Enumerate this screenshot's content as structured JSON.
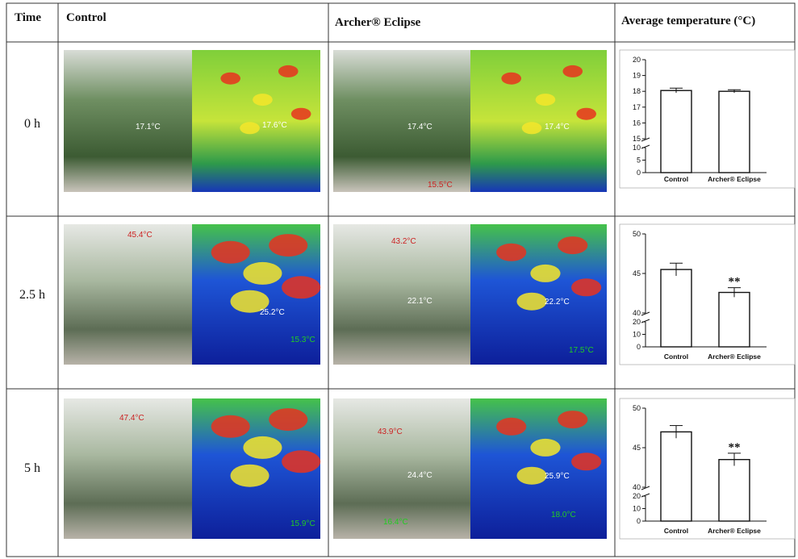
{
  "header": {
    "time": "Time",
    "control": "Control",
    "treatment": "Archer® Eclipse",
    "chart": "Average temperature (°C)"
  },
  "rows": [
    {
      "time": "0 h",
      "control": {
        "photo": [
          "17.1°C"
        ],
        "thermal": [
          "17.6°C"
        ]
      },
      "treatment": {
        "photo": [
          "17.4°C",
          "15.5°C"
        ],
        "thermal": [
          "17.4°C"
        ]
      },
      "chart": {
        "type": "bar",
        "categories": [
          "Control",
          "Archer® Eclipse"
        ],
        "values": [
          18.05,
          18.0
        ],
        "errors": [
          0.15,
          0.1
        ],
        "ylim": [
          15,
          20
        ],
        "yticks": [
          15,
          16,
          17,
          18,
          19,
          20
        ],
        "ylim_lower": [
          0,
          10
        ],
        "yticks_lower": [
          0,
          5,
          10
        ],
        "annotations": [
          null,
          null
        ]
      }
    },
    {
      "time": "2.5 h",
      "control": {
        "photo": [
          "45.4°C"
        ],
        "thermal": [
          "25.2°C",
          "15.3°C"
        ]
      },
      "treatment": {
        "photo": [
          "43.2°C",
          "22.1°C"
        ],
        "thermal": [
          "22.2°C",
          "17.5°C"
        ]
      },
      "chart": {
        "type": "bar",
        "categories": [
          "Control",
          "Archer® Eclipse"
        ],
        "values": [
          45.5,
          42.6
        ],
        "errors": [
          0.8,
          0.6
        ],
        "ylim": [
          40,
          50
        ],
        "yticks": [
          40,
          45,
          50
        ],
        "ylim_lower": [
          0,
          20
        ],
        "yticks_lower": [
          0,
          10,
          20
        ],
        "annotations": [
          null,
          "**"
        ]
      }
    },
    {
      "time": "5 h",
      "control": {
        "photo": [
          "47.4°C"
        ],
        "thermal": [
          "15.9°C"
        ]
      },
      "treatment": {
        "photo": [
          "43.9°C",
          "24.4°C",
          "16.4°C"
        ],
        "thermal": [
          "25.9°C",
          "18.0°C"
        ]
      },
      "chart": {
        "type": "bar",
        "categories": [
          "Control",
          "Archer® Eclipse"
        ],
        "values": [
          47.0,
          43.5
        ],
        "errors": [
          0.8,
          0.8
        ],
        "ylim": [
          40,
          50
        ],
        "yticks": [
          40,
          45,
          50
        ],
        "ylim_lower": [
          0,
          20
        ],
        "yticks_lower": [
          0,
          10,
          20
        ],
        "annotations": [
          null,
          "**"
        ]
      }
    }
  ]
}
